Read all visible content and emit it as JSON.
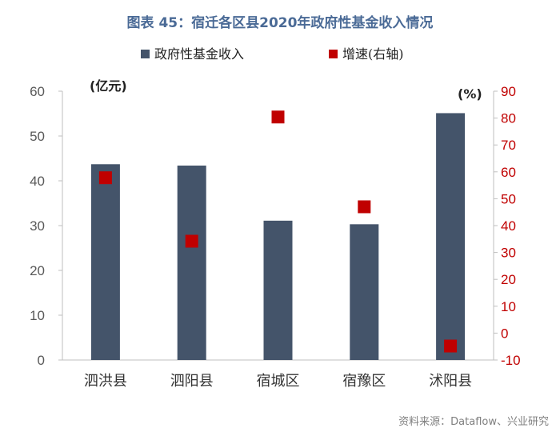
{
  "title": "图表 45：宿迁各区县2020年政府性基金收入情况",
  "source": "资料来源：Dataflow、兴业研究",
  "colors": {
    "bar": "#44546a",
    "marker": "#c00000",
    "axis_left": "#595959",
    "axis_right": "#c00000"
  },
  "chart_data": {
    "type": "bar",
    "categories": [
      "泗洪县",
      "泗阳县",
      "宿城区",
      "宿豫区",
      "沭阳县"
    ],
    "series": [
      {
        "name": "政府性基金收入",
        "type": "bar",
        "axis": "left",
        "values": [
          43.7,
          43.4,
          31.1,
          30.3,
          55.1
        ]
      },
      {
        "name": "增速(右轴)",
        "type": "scatter",
        "axis": "right",
        "values": [
          57.8,
          34.2,
          80.4,
          47.0,
          -4.8
        ]
      }
    ],
    "y_left": {
      "unit": "(亿元)",
      "ylim": [
        0,
        60
      ],
      "ticks": [
        0,
        10,
        20,
        30,
        40,
        50,
        60
      ]
    },
    "y_right": {
      "unit": "(%)",
      "ylim": [
        -10,
        90
      ],
      "ticks": [
        -10,
        0,
        10,
        20,
        30,
        40,
        50,
        60,
        70,
        80,
        90
      ]
    },
    "legend_position": "top",
    "grid": false
  }
}
